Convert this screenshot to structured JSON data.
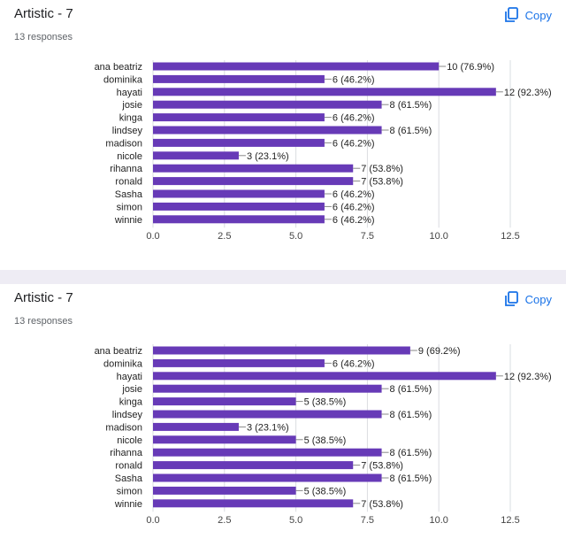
{
  "cards": [
    {
      "title": "Artistic - 7",
      "subtitle": "13 responses",
      "copy_label": "Copy",
      "chart_data": {
        "type": "bar",
        "orientation": "horizontal",
        "categories": [
          "ana beatriz",
          "dominika",
          "hayati",
          "josie",
          "kinga",
          "lindsey",
          "madison",
          "nicole",
          "rihanna",
          "ronald",
          "Sasha",
          "simon",
          "winnie"
        ],
        "values": [
          10,
          6,
          12,
          8,
          6,
          8,
          6,
          3,
          7,
          7,
          6,
          6,
          6
        ],
        "labels": [
          "10 (76.9%)",
          "6 (46.2%)",
          "12 (92.3%)",
          "8 (61.5%)",
          "6 (46.2%)",
          "8 (61.5%)",
          "6 (46.2%)",
          "3 (23.1%)",
          "7 (53.8%)",
          "7 (53.8%)",
          "6 (46.2%)",
          "6 (46.2%)",
          "6 (46.2%)"
        ],
        "xticks": [
          "0.0",
          "2.5",
          "5.0",
          "7.5",
          "10.0",
          "12.5"
        ],
        "xlim": [
          0,
          12.5
        ],
        "grid": true,
        "color": "#673ab7"
      }
    },
    {
      "title": "Artistic - 7",
      "subtitle": "13 responses",
      "copy_label": "Copy",
      "chart_data": {
        "type": "bar",
        "orientation": "horizontal",
        "categories": [
          "ana beatriz",
          "dominika",
          "hayati",
          "josie",
          "kinga",
          "lindsey",
          "madison",
          "nicole",
          "rihanna",
          "ronald",
          "Sasha",
          "simon",
          "winnie"
        ],
        "values": [
          9,
          6,
          12,
          8,
          5,
          8,
          3,
          5,
          8,
          7,
          8,
          5,
          7
        ],
        "labels": [
          "9 (69.2%)",
          "6 (46.2%)",
          "12 (92.3%)",
          "8 (61.5%)",
          "5 (38.5%)",
          "8 (61.5%)",
          "3 (23.1%)",
          "5 (38.5%)",
          "8 (61.5%)",
          "7 (53.8%)",
          "8 (61.5%)",
          "5 (38.5%)",
          "7 (53.8%)"
        ],
        "xticks": [
          "0.0",
          "2.5",
          "5.0",
          "7.5",
          "10.0",
          "12.5"
        ],
        "xlim": [
          0,
          12.5
        ],
        "grid": true,
        "color": "#673ab7"
      }
    }
  ]
}
